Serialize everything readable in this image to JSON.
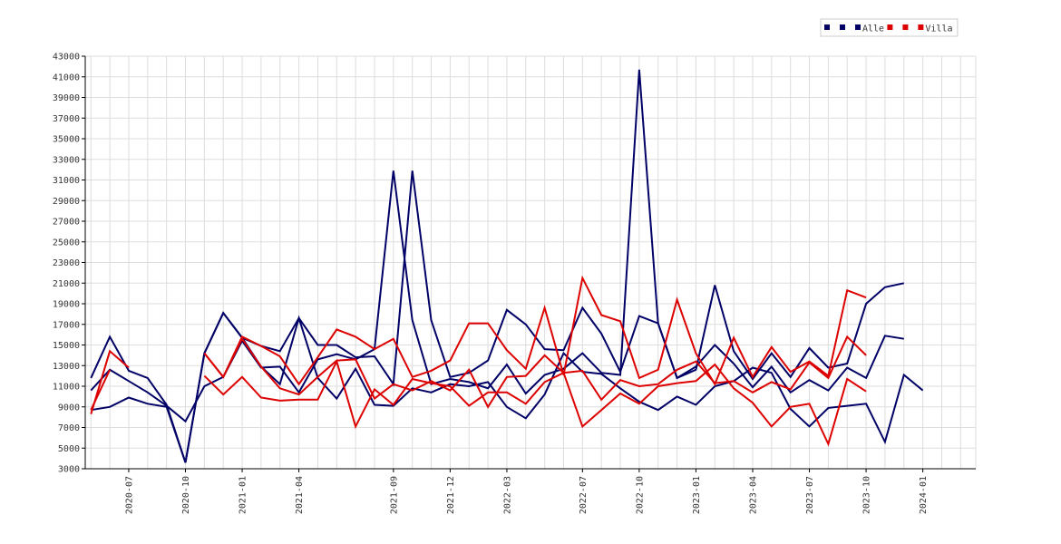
{
  "chart_data": {
    "type": "line",
    "grid": true,
    "ylim": [
      3000,
      43000
    ],
    "yticks": [
      3000,
      5000,
      7000,
      9000,
      11000,
      13000,
      15000,
      17000,
      19000,
      21000,
      23000,
      25000,
      27000,
      29000,
      31000,
      33000,
      35000,
      37000,
      39000,
      41000,
      43000
    ],
    "x_range": [
      "2020-05",
      "2024-03"
    ],
    "x_tick_labels": [
      "2020-07",
      "2020-10",
      "2021-01",
      "2021-04",
      "2021-09",
      "2021-12",
      "2022-03",
      "2022-07",
      "2022-10",
      "2023-01",
      "2023-04",
      "2023-07",
      "2023-10",
      "2024-01"
    ],
    "legend": {
      "placement": "top-right",
      "entries": [
        {
          "label": "",
          "color": "#000066"
        },
        {
          "label": "",
          "color": "#000066"
        },
        {
          "label": "Alle",
          "color": "#000066"
        },
        {
          "label": "",
          "color": "#dd0000"
        },
        {
          "label": "",
          "color": "#dd0000"
        },
        {
          "label": "Villa",
          "color": "#dd0000"
        }
      ]
    },
    "series": [
      {
        "color": "#000066",
        "start": "2020-05",
        "values": [
          11800,
          15800,
          12500,
          11800,
          9200,
          3600,
          14200,
          18100,
          15700,
          14900,
          14400,
          17600,
          15000,
          15000,
          13800,
          13900,
          11200,
          31900,
          17400,
          11900,
          12300,
          13500,
          18400,
          17000,
          14600,
          14500,
          18600,
          16100,
          12400,
          17800,
          17100,
          11800,
          12600,
          20800,
          14400,
          11700,
          14200,
          11900,
          14700,
          12800,
          13200,
          19000,
          20600,
          21000
        ]
      },
      {
        "color": "#000066",
        "start": "2020-05",
        "values": [
          10600,
          12600,
          11500,
          10400,
          9100,
          7600,
          11000,
          11900,
          15400,
          12800,
          12900,
          10400,
          13600,
          14100,
          13600,
          14600,
          31900,
          17400,
          11200,
          11700,
          11400,
          10800,
          13100,
          10300,
          12100,
          12700,
          14200,
          12300,
          12100,
          41700,
          17100,
          11800,
          12900,
          15000,
          13200,
          10900,
          12900,
          10400,
          11600,
          10600,
          12800,
          11800,
          15900,
          15600
        ]
      },
      {
        "color": "#000066",
        "start": "2020-05",
        "values": [
          8700,
          9000,
          9900,
          9300,
          9000,
          3600,
          14200,
          18100,
          15700,
          12900,
          11200,
          17600,
          11800,
          9800,
          12700,
          9200,
          9100,
          10800,
          10400,
          11200,
          11000,
          11400,
          9000,
          7900,
          10200,
          14200,
          12400,
          12200,
          10800,
          9500,
          8700,
          10000,
          9200,
          11000,
          11500,
          12800,
          12300,
          8800,
          7100,
          8900,
          9100,
          9300,
          5600,
          12100,
          10600
        ]
      },
      {
        "color": "#dd0000",
        "start": "2020-05",
        "values": [
          8300,
          14400,
          12800,
          null,
          null,
          null,
          14200,
          11900,
          15800,
          14900,
          13900,
          11200,
          13800,
          16500,
          15800,
          14600,
          15600,
          11900,
          12500,
          13500,
          17100,
          17100,
          14500,
          12700,
          18600,
          12100,
          21500,
          17900,
          17300,
          11800,
          12600,
          19400,
          14200,
          11200,
          15700,
          11900,
          14800,
          12400,
          13400,
          12000,
          20300,
          19600
        ]
      },
      {
        "color": "#dd0000",
        "start": "2020-05",
        "values": [
          8700,
          12600,
          null,
          null,
          null,
          null,
          14200,
          11900,
          15600,
          12900,
          10800,
          10200,
          11900,
          13500,
          13600,
          9800,
          11200,
          10600,
          11500,
          10600,
          12600,
          9000,
          11900,
          12000,
          14000,
          12300,
          12500,
          9700,
          11600,
          11000,
          11200,
          12600,
          13400,
          11300,
          11500,
          10400,
          11400,
          10700,
          13300,
          11800,
          15800,
          14000
        ]
      },
      {
        "color": "#dd0000",
        "start": "2020-05",
        "values": [
          null,
          null,
          null,
          null,
          null,
          null,
          12000,
          10200,
          11900,
          9900,
          9600,
          9700,
          9700,
          13400,
          7100,
          10700,
          9200,
          11700,
          11300,
          11000,
          9100,
          10400,
          10400,
          9300,
          11400,
          12300,
          7100,
          8700,
          10300,
          9300,
          11000,
          11300,
          11500,
          13100,
          10800,
          9400,
          7100,
          9000,
          9300,
          5400,
          11700,
          10500
        ]
      }
    ]
  }
}
